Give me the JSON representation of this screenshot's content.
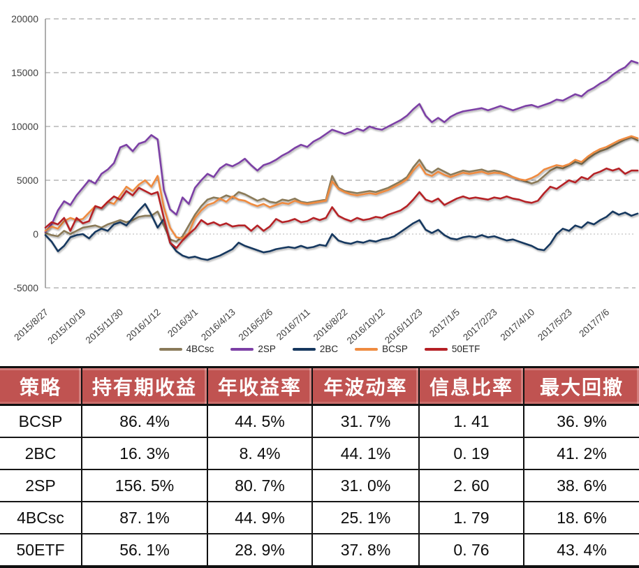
{
  "chart_data": {
    "type": "line",
    "title": "",
    "xlabel": "",
    "ylabel": "",
    "ylim": [
      -5000,
      20000
    ],
    "y_ticks": [
      20000,
      15000,
      10000,
      5000,
      0,
      -5000
    ],
    "grid": "horizontal dashed",
    "legend_position": "bottom-center",
    "samples_per_tick": 6,
    "x_tick_labels": [
      "2015/8/27",
      "2015/10/19",
      "2015/11/30",
      "2016/1/12",
      "2016/3/1",
      "2016/4/13",
      "2016/5/26",
      "2016/7/11",
      "2016/8/22",
      "2016/10/12",
      "2016/11/23",
      "2017/1/5",
      "2017/2/23",
      "2017/4/10",
      "2017/5/23",
      "2017/7/6"
    ],
    "series": [
      {
        "name": "4BCsc",
        "color": "#8a7a59",
        "values": [
          100,
          -100,
          -200,
          300,
          0,
          300,
          600,
          700,
          800,
          600,
          900,
          1100,
          1300,
          1100,
          1300,
          1600,
          1700,
          1700,
          2100,
          800,
          -500,
          -700,
          -200,
          800,
          1800,
          2600,
          3200,
          3400,
          3300,
          3600,
          3400,
          3900,
          3700,
          3400,
          3100,
          3300,
          3000,
          2900,
          3200,
          3100,
          3300,
          3000,
          2900,
          3000,
          3100,
          3200,
          5400,
          4300,
          4000,
          3900,
          3800,
          3900,
          4000,
          3900,
          4100,
          4300,
          4600,
          4900,
          5300,
          6200,
          6900,
          6000,
          5700,
          6100,
          5800,
          5500,
          5700,
          5900,
          5800,
          5900,
          6000,
          5800,
          5900,
          5800,
          5600,
          5300,
          5100,
          4900,
          4700,
          4900,
          5400,
          5900,
          6200,
          6100,
          6400,
          6700,
          6500,
          7000,
          7400,
          7700,
          7900,
          8200,
          8500,
          8800,
          9000,
          8700
        ]
      },
      {
        "name": "2SP",
        "color": "#7c3fa5",
        "values": [
          200,
          900,
          2200,
          3050,
          2700,
          3600,
          4300,
          5000,
          4700,
          5600,
          6000,
          6600,
          8050,
          8300,
          7700,
          8400,
          8600,
          9200,
          8800,
          4100,
          2300,
          1800,
          3400,
          2800,
          4300,
          5000,
          5600,
          5300,
          6100,
          6500,
          6300,
          6600,
          7000,
          6400,
          5900,
          6400,
          6600,
          6900,
          7300,
          7600,
          8000,
          8300,
          8100,
          8600,
          8900,
          9300,
          9700,
          9500,
          9300,
          9500,
          9800,
          9600,
          10000,
          9800,
          9700,
          10000,
          10300,
          10600,
          11000,
          11600,
          12100,
          11000,
          10400,
          10800,
          10400,
          10900,
          11200,
          11400,
          11500,
          11600,
          11700,
          11500,
          11700,
          11900,
          11700,
          11500,
          11700,
          11900,
          12000,
          11800,
          12000,
          12200,
          12500,
          12400,
          12700,
          13000,
          12800,
          13300,
          13600,
          14000,
          14300,
          14800,
          15200,
          15500,
          16100,
          15900
        ]
      },
      {
        "name": "2BC",
        "color": "#16375e",
        "values": [
          -100,
          -700,
          -1600,
          -1100,
          -300,
          -100,
          0,
          -400,
          200,
          500,
          300,
          900,
          1100,
          800,
          1500,
          2200,
          2800,
          1800,
          600,
          1400,
          -800,
          -1600,
          -2000,
          -2200,
          -2100,
          -2300,
          -2400,
          -2200,
          -2000,
          -1700,
          -1400,
          -800,
          -1100,
          -1300,
          -1500,
          -1700,
          -1600,
          -1400,
          -1300,
          -1200,
          -1300,
          -1100,
          -1300,
          -1200,
          -1000,
          -1100,
          0,
          -600,
          -800,
          -900,
          -700,
          -800,
          -600,
          -700,
          -500,
          -400,
          -200,
          200,
          600,
          1000,
          1300,
          400,
          100,
          400,
          -100,
          -400,
          -500,
          -300,
          -200,
          -300,
          -100,
          -300,
          -200,
          -400,
          -600,
          -500,
          -700,
          -900,
          -1100,
          -1400,
          -1500,
          -900,
          0,
          500,
          300,
          800,
          600,
          1100,
          900,
          1300,
          1600,
          2100,
          1800,
          2000,
          1700,
          1900
        ]
      },
      {
        "name": "BCSP",
        "color": "#ef8b40",
        "values": [
          300,
          700,
          500,
          1200,
          1500,
          1300,
          1400,
          2000,
          2600,
          2400,
          3000,
          2800,
          3600,
          4400,
          4000,
          4600,
          5000,
          4400,
          5400,
          2500,
          600,
          -300,
          -400,
          100,
          1500,
          2200,
          2700,
          2900,
          3300,
          3000,
          3500,
          3200,
          3100,
          2800,
          2600,
          2800,
          2500,
          2700,
          2900,
          2800,
          3100,
          2900,
          2800,
          2900,
          3000,
          3100,
          4900,
          4200,
          3900,
          3700,
          3600,
          3700,
          3800,
          3700,
          3900,
          4100,
          4400,
          4700,
          5100,
          5900,
          6500,
          5600,
          5400,
          5800,
          5500,
          5300,
          5500,
          5700,
          5600,
          5700,
          5800,
          5600,
          5700,
          5650,
          5500,
          5300,
          5100,
          5000,
          5200,
          5500,
          6000,
          6200,
          6400,
          6300,
          6500,
          6900,
          6700,
          7200,
          7600,
          7900,
          8100,
          8400,
          8700,
          8900,
          9100,
          8900
        ]
      },
      {
        "name": "50ETF",
        "color": "#b52025",
        "values": [
          600,
          1100,
          900,
          1500,
          300,
          1500,
          1000,
          1200,
          2600,
          2400,
          3000,
          3500,
          3200,
          4000,
          3600,
          4300,
          4000,
          3700,
          3900,
          1500,
          -800,
          -1300,
          -600,
          0,
          500,
          1300,
          900,
          1100,
          800,
          1000,
          700,
          800,
          800,
          300,
          800,
          300,
          700,
          1400,
          1100,
          1200,
          1400,
          1100,
          1200,
          1500,
          1300,
          1500,
          2500,
          1700,
          1400,
          1200,
          1500,
          1300,
          1400,
          1600,
          1500,
          1800,
          2000,
          2200,
          2600,
          3200,
          3900,
          3200,
          3000,
          3300,
          2700,
          3000,
          3300,
          3500,
          3300,
          3400,
          3300,
          3200,
          3400,
          3300,
          3500,
          3300,
          3200,
          3000,
          2900,
          3100,
          3800,
          4400,
          4200,
          4600,
          5000,
          4800,
          5300,
          5100,
          5600,
          5800,
          6100,
          5900,
          6100,
          5600,
          5900,
          5900
        ]
      }
    ]
  },
  "axis_colors": {
    "gridline": "#a6a6a6",
    "zero_line": "#d9d9d9",
    "axis_line": "#8c8c8c",
    "tick_text": "#3f3f3f"
  },
  "table": {
    "header_bg": "#c05351",
    "header_text_color": "#ffffff",
    "headers": [
      "策略",
      "持有期收益",
      "年收益率",
      "年波动率",
      "信息比率",
      "最大回撤"
    ],
    "rows": [
      [
        "BCSP",
        "86. 4%",
        "44. 5%",
        "31. 7%",
        "1. 41",
        "36. 9%"
      ],
      [
        "2BC",
        "16. 3%",
        "8. 4%",
        "44. 1%",
        "0. 19",
        "41. 2%"
      ],
      [
        "2SP",
        "156. 5%",
        "80. 7%",
        "31. 0%",
        "2. 60",
        "38. 6%"
      ],
      [
        "4BCsc",
        "87. 1%",
        "44. 9%",
        "25. 1%",
        "1. 79",
        "18. 6%"
      ],
      [
        "50ETF",
        "56. 1%",
        "28. 9%",
        "37. 8%",
        "0. 76",
        "43. 4%"
      ]
    ]
  }
}
